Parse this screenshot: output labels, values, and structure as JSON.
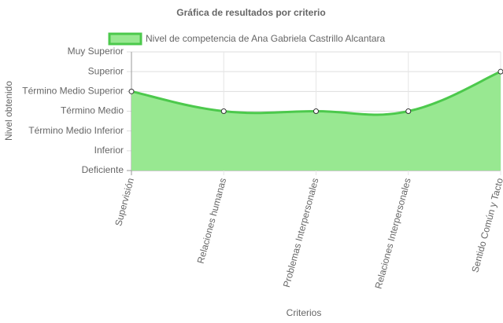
{
  "chart_data": {
    "type": "line",
    "title": "Gráfica de resultados por criterio",
    "x_label": "Criterios",
    "y_label": "Nivel obtenido",
    "categories": [
      "Supervisión",
      "Relaciones humanas",
      "Problemas Interpersonales",
      "Relaciones Interpersonales",
      "Sentido Común y Tacto"
    ],
    "series": [
      {
        "name": "Nivel de competencia de Ana Gabriela Castrillo Alcantara",
        "color": "#4cc94c",
        "fill": "#98e891",
        "values": [
          4,
          3,
          3,
          3,
          5
        ]
      }
    ],
    "ylim": [
      0,
      6
    ],
    "yticks": [
      {
        "value": 0,
        "label": "Deficiente"
      },
      {
        "value": 1,
        "label": "Inferior"
      },
      {
        "value": 2,
        "label": "Término Medio Inferior"
      },
      {
        "value": 3,
        "label": "Término Medio"
      },
      {
        "value": 4,
        "label": "Término Medio Superior"
      },
      {
        "value": 5,
        "label": "Superior"
      },
      {
        "value": 6,
        "label": "Muy Superior"
      }
    ],
    "grid": true,
    "legend": "top"
  }
}
